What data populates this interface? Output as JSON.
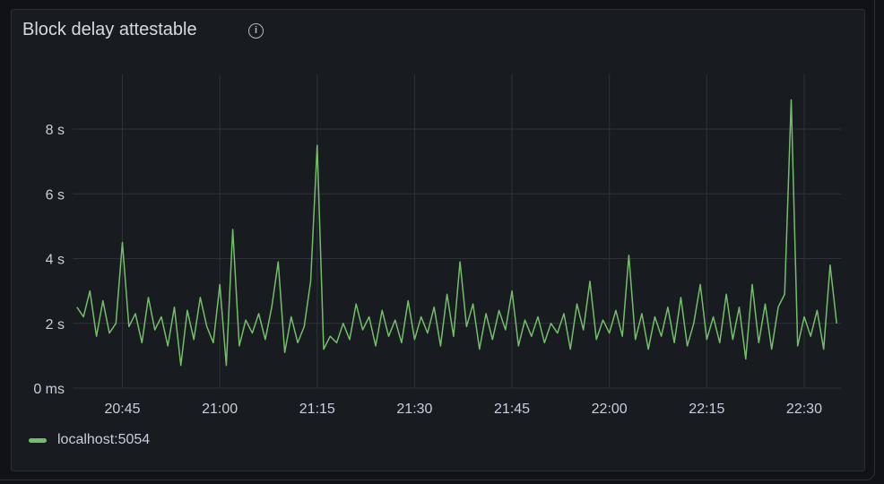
{
  "panel": {
    "title": "Block delay attestable",
    "info_icon": "info-circle-icon"
  },
  "legend": {
    "label": "localhost:5054",
    "color": "#73bf69"
  },
  "colors": {
    "background": "#181b1f",
    "grid": "#2f3237",
    "text": "#ccccdc",
    "series": "#73bf69"
  },
  "chart_data": {
    "type": "line",
    "title": "Block delay attestable",
    "xlabel": "",
    "ylabel": "",
    "x_range": [
      "20:37:20",
      "22:35:40"
    ],
    "ylim": [
      0,
      9.9
    ],
    "y_unit": "s",
    "y_ticks": [
      {
        "value": 0,
        "label": "0 ms"
      },
      {
        "value": 2,
        "label": "2 s"
      },
      {
        "value": 4,
        "label": "4 s"
      },
      {
        "value": 6,
        "label": "6 s"
      },
      {
        "value": 8,
        "label": "8 s"
      }
    ],
    "x_ticks": [
      "20:45",
      "21:00",
      "21:15",
      "21:30",
      "21:45",
      "22:00",
      "22:15",
      "22:30"
    ],
    "grid": true,
    "legend_position": "bottom-left",
    "series": [
      {
        "name": "localhost:5054",
        "x_start": "20:38",
        "x_step_minutes": 1,
        "values": [
          2.5,
          2.2,
          3.0,
          1.6,
          2.7,
          1.7,
          2.0,
          4.5,
          1.9,
          2.3,
          1.4,
          2.8,
          1.8,
          2.2,
          1.3,
          2.5,
          0.7,
          2.4,
          1.5,
          2.8,
          1.9,
          1.4,
          3.2,
          0.7,
          4.9,
          1.3,
          2.1,
          1.7,
          2.3,
          1.5,
          2.5,
          3.9,
          1.1,
          2.2,
          1.4,
          1.9,
          3.3,
          7.5,
          1.2,
          1.6,
          1.4,
          2.0,
          1.5,
          2.6,
          1.8,
          2.2,
          1.3,
          2.4,
          1.6,
          2.1,
          1.4,
          2.7,
          1.5,
          2.2,
          1.7,
          2.5,
          1.3,
          2.9,
          1.6,
          3.9,
          1.9,
          2.6,
          1.2,
          2.3,
          1.5,
          2.4,
          1.8,
          3.0,
          1.3,
          2.1,
          1.6,
          2.2,
          1.4,
          2.0,
          1.7,
          2.3,
          1.2,
          2.6,
          1.8,
          3.3,
          1.5,
          2.1,
          1.7,
          2.4,
          1.6,
          4.1,
          1.5,
          2.3,
          1.2,
          2.2,
          1.6,
          2.5,
          1.4,
          2.8,
          1.3,
          2.0,
          3.2,
          1.5,
          2.2,
          1.4,
          2.9,
          1.5,
          2.5,
          0.9,
          3.2,
          1.4,
          2.6,
          1.2,
          2.5,
          2.9,
          8.9,
          1.3,
          2.2,
          1.6,
          2.4,
          1.2,
          3.8,
          2.0
        ]
      }
    ]
  }
}
